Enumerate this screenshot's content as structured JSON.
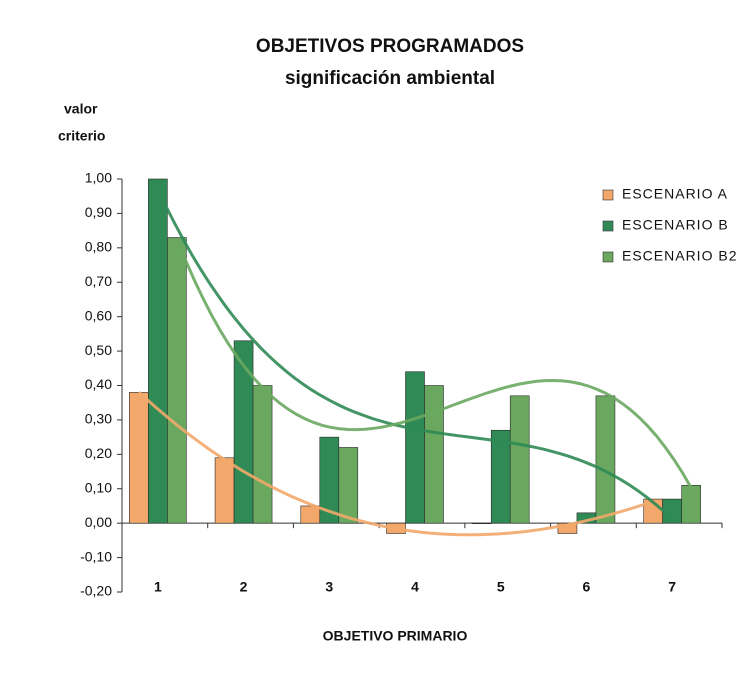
{
  "chart_data": {
    "type": "bar",
    "title": "OBJETIVOS PROGRAMADOS",
    "subtitle": "significación ambiental",
    "y_label": [
      "valor",
      "criterio"
    ],
    "x_label": "OBJETIVO PRIMARIO",
    "categories": [
      "1",
      "2",
      "3",
      "4",
      "5",
      "6",
      "7"
    ],
    "series": [
      {
        "name": "ESCENARIO A",
        "color": "#f2a86a",
        "values": [
          0.38,
          0.19,
          0.05,
          -0.03,
          0,
          -0.03,
          0.07
        ]
      },
      {
        "name": "ESCENARIO B",
        "color": "#2f8a55",
        "values": [
          1.0,
          0.53,
          0.25,
          0.44,
          0.27,
          0.03,
          0.07
        ]
      },
      {
        "name": "ESCENARIO B2",
        "color": "#6aa860",
        "values": [
          0.83,
          0.4,
          0.22,
          0.4,
          0.37,
          0.37,
          0.11
        ]
      }
    ],
    "ylim": [
      -0.2,
      1.0
    ],
    "yticks": [
      {
        "value": -0.2,
        "label": "-0,20"
      },
      {
        "value": -0.1,
        "label": "-0,10"
      },
      {
        "value": 0,
        "label": "0,00"
      },
      {
        "value": 0.1,
        "label": "0,10"
      },
      {
        "value": 0.2,
        "label": "0,20"
      },
      {
        "value": 0.3,
        "label": "0,30"
      },
      {
        "value": 0.4,
        "label": "0,40"
      },
      {
        "value": 0.5,
        "label": "0,50"
      },
      {
        "value": 0.6,
        "label": "0,60"
      },
      {
        "value": 0.7,
        "label": "0,70"
      },
      {
        "value": 0.8,
        "label": "0,80"
      },
      {
        "value": 0.9,
        "label": "0,90"
      },
      {
        "value": 1.0,
        "label": "1,00"
      }
    ],
    "trendline": "polynomial-3",
    "legend": "right"
  }
}
